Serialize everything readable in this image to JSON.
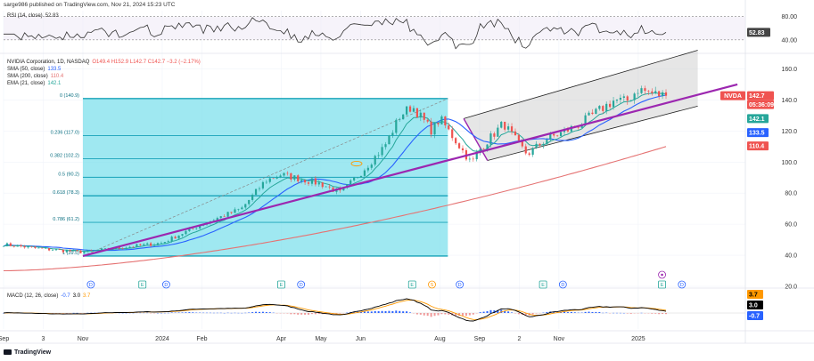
{
  "header": {
    "publisher": "sarge986 published on TradingView.com, Nov 21, 2024 15:23 UTC"
  },
  "legend": {
    "rsi": {
      "label": "RSI (14, close)",
      "value": "52.83"
    },
    "ticker": {
      "label": "NVIDIA Corporation, 1D, NASDAQ",
      "ohlc": "O149.4 H152.9 L142.7 C142.7 −3.2 (−2.17%)"
    },
    "sma50": {
      "label": "SMA (50, close)",
      "value": "133.5"
    },
    "sma200": {
      "label": "SMA (200, close)",
      "value": "110.4"
    },
    "ema21": {
      "label": "EMA (21, close)",
      "value": "142.1"
    },
    "macd": {
      "label": "MACD (12, 26, close)",
      "v1": "-0.7",
      "v2": "3.0",
      "v3": "3.7"
    }
  },
  "price_axis": [
    "160.0",
    "140.0",
    "120.0",
    "100.0",
    "80.0",
    "60.0",
    "40.0",
    "20.0"
  ],
  "rsi_axis": [
    "80.00",
    "40.00"
  ],
  "badges": {
    "ticker": "NVDA",
    "price": "142.7",
    "countdown": "05:36:09",
    "ema": "142.1",
    "sma50": "133.5",
    "sma200": "110.4",
    "rsi": "52.83",
    "macd_a": "3.7",
    "macd_b": "3.0",
    "macd_c": "-0.7"
  },
  "time_axis": [
    "Sep",
    "3",
    "Nov",
    "2024",
    "Feb",
    "Apr",
    "May",
    "Jun",
    "Aug",
    "Sep",
    "2",
    "Nov",
    "2025"
  ],
  "fib_levels": [
    {
      "label": "0 (140.9)",
      "price": 140.9
    },
    {
      "label": "0.236 (117.0)",
      "price": 117.0
    },
    {
      "label": "0.382 (102.2)",
      "price": 102.2
    },
    {
      "label": "0.5 (90.2)",
      "price": 90.2
    },
    {
      "label": "0.618 (78.3)",
      "price": 78.3
    },
    {
      "label": "0.786 (61.2)",
      "price": 61.2
    },
    {
      "label": "1 (39.5)",
      "price": 39.5
    }
  ],
  "events": [
    "D",
    "E",
    "D",
    "E",
    "D",
    "E",
    "S",
    "D",
    "E",
    "D",
    "E",
    "D"
  ],
  "branding": "TradingView",
  "colors": {
    "up": "#26a69a",
    "down": "#ef5350",
    "sma50": "#2962ff",
    "sma200": "#e57373",
    "ema21": "#26a69a",
    "trend": "#9c27b0",
    "rsi": "#333333",
    "fib_fill": "#7fe0ec",
    "channel": "#cccccc",
    "macd": "#000000",
    "signal": "#ff9800",
    "hist_up": "#2962ff"
  },
  "chart_data": {
    "type": "candlestick",
    "symbol": "NVDA",
    "interval": "1D",
    "ylim": [
      20,
      170
    ],
    "price_ticks": [
      20,
      40,
      60,
      80,
      100,
      120,
      140,
      160
    ],
    "price_anchors": [
      {
        "month": 0.0,
        "price": 47
      },
      {
        "month": 1.0,
        "price": 44
      },
      {
        "month": 2.0,
        "price": 42
      },
      {
        "month": 3.0,
        "price": 45
      },
      {
        "month": 4.0,
        "price": 48
      },
      {
        "month": 5.0,
        "price": 60
      },
      {
        "month": 6.0,
        "price": 70
      },
      {
        "month": 6.6,
        "price": 88
      },
      {
        "month": 7.0,
        "price": 92
      },
      {
        "month": 8.0,
        "price": 86
      },
      {
        "month": 8.5,
        "price": 80
      },
      {
        "month": 9.0,
        "price": 93
      },
      {
        "month": 9.6,
        "price": 110
      },
      {
        "month": 10.0,
        "price": 130
      },
      {
        "month": 10.3,
        "price": 136
      },
      {
        "month": 10.8,
        "price": 120
      },
      {
        "month": 11.0,
        "price": 128
      },
      {
        "month": 11.5,
        "price": 110
      },
      {
        "month": 11.8,
        "price": 99
      },
      {
        "month": 12.0,
        "price": 108
      },
      {
        "month": 12.6,
        "price": 125
      },
      {
        "month": 13.0,
        "price": 111
      },
      {
        "month": 13.2,
        "price": 105
      },
      {
        "month": 13.7,
        "price": 115
      },
      {
        "month": 14.0,
        "price": 118
      },
      {
        "month": 14.5,
        "price": 124
      },
      {
        "month": 15.0,
        "price": 133
      },
      {
        "month": 15.4,
        "price": 140
      },
      {
        "month": 15.7,
        "price": 139
      },
      {
        "month": 16.0,
        "price": 147
      },
      {
        "month": 16.4,
        "price": 144
      },
      {
        "month": 16.7,
        "price": 142.7
      }
    ],
    "time_ticks": [
      {
        "label": "Sep",
        "month": 0.0
      },
      {
        "label": "3",
        "month": 1.0
      },
      {
        "label": "Nov",
        "month": 2.0
      },
      {
        "label": "2024",
        "month": 4.0
      },
      {
        "label": "Feb",
        "month": 5.0
      },
      {
        "label": "Apr",
        "month": 7.0
      },
      {
        "label": "May",
        "month": 8.0
      },
      {
        "label": "Jun",
        "month": 9.0
      },
      {
        "label": "Aug",
        "month": 11.0
      },
      {
        "label": "Sep",
        "month": 12.0
      },
      {
        "label": "2",
        "month": 13.0
      },
      {
        "label": "Nov",
        "month": 14.0
      },
      {
        "label": "2025",
        "month": 16.0
      }
    ],
    "fib_range": {
      "start_month": 2.0,
      "end_month": 11.2,
      "high": 140.9,
      "low": 39.5
    },
    "trendline": [
      {
        "month": 2.0,
        "price": 39.5
      },
      {
        "month": 18.5,
        "price": 150
      }
    ],
    "channel": {
      "upper": [
        {
          "month": 11.6,
          "price": 128
        },
        {
          "month": 17.5,
          "price": 172
        }
      ],
      "lower": [
        {
          "month": 12.2,
          "price": 101
        },
        {
          "month": 17.5,
          "price": 136
        }
      ]
    },
    "rsi": {
      "ylim": [
        20,
        90
      ],
      "ticks": [
        40,
        80
      ],
      "last": 52.83
    },
    "macd": {
      "last_macd": 3.0,
      "last_signal": 3.7,
      "last_hist": -0.7
    },
    "events": [
      {
        "type": "D",
        "month": 2.2
      },
      {
        "type": "E",
        "month": 3.5
      },
      {
        "type": "D",
        "month": 4.1
      },
      {
        "type": "E",
        "month": 7.0
      },
      {
        "type": "D",
        "month": 7.5
      },
      {
        "type": "E",
        "month": 10.3
      },
      {
        "type": "S",
        "month": 10.8
      },
      {
        "type": "D",
        "month": 11.5
      },
      {
        "type": "E",
        "month": 13.6
      },
      {
        "type": "D",
        "month": 14.1
      },
      {
        "type": "E",
        "month": 16.6
      },
      {
        "type": "D",
        "month": 17.1
      }
    ]
  }
}
